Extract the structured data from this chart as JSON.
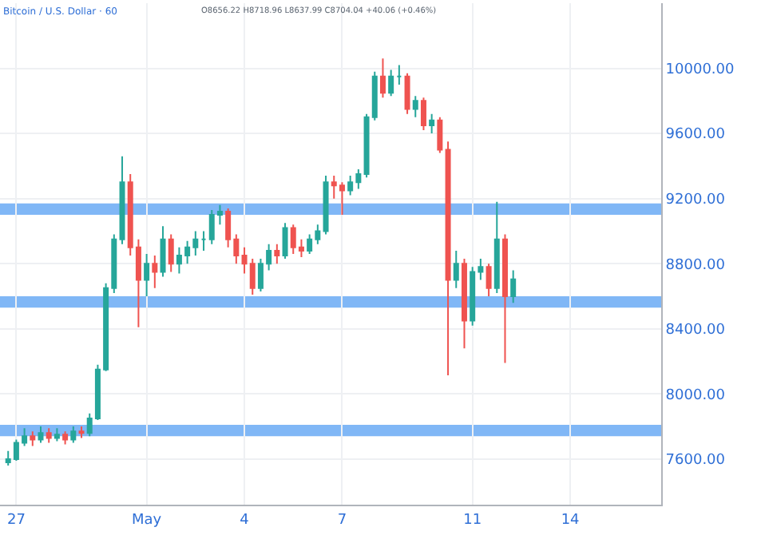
{
  "chart_data": {
    "type": "candlestick",
    "title": "Bitcoin / U.S. Dollar · 60",
    "annotations": [
      "O8656.22 H8718.96 L8637.99 C8704.04 +40.06 (+0.46%)"
    ],
    "x": [
      "--04-26T18:00",
      "--04-27T00:00",
      "--04-27T06:00",
      "--04-27T12:00",
      "--04-27T18:00",
      "--04-28T00:00",
      "--04-28T06:00",
      "--04-28T12:00",
      "--04-28T18:00",
      "--04-29T00:00",
      "--04-29T06:00",
      "--04-29T12:00",
      "--04-29T18:00",
      "--04-30T00:00",
      "--04-30T06:00",
      "--04-30T12:00",
      "--04-30T18:00",
      "--05-01T00:00",
      "--05-01T06:00",
      "--05-01T12:00",
      "--05-01T18:00",
      "--05-02T00:00",
      "--05-02T06:00",
      "--05-02T12:00",
      "--05-02T18:00",
      "--05-03T00:00",
      "--05-03T06:00",
      "--05-03T12:00",
      "--05-03T18:00",
      "--05-04T00:00",
      "--05-04T06:00",
      "--05-04T12:00",
      "--05-04T18:00",
      "--05-05T00:00",
      "--05-05T06:00",
      "--05-05T12:00",
      "--05-05T18:00",
      "--05-06T00:00",
      "--05-06T06:00",
      "--05-06T12:00",
      "--05-06T18:00",
      "--05-07T00:00",
      "--05-07T06:00",
      "--05-07T12:00",
      "--05-07T18:00",
      "--05-08T00:00",
      "--05-08T06:00",
      "--05-08T12:00",
      "--05-08T18:00",
      "--05-09T00:00",
      "--05-09T06:00",
      "--05-09T12:00",
      "--05-09T18:00",
      "--05-10T00:00",
      "--05-10T06:00",
      "--05-10T12:00",
      "--05-10T18:00",
      "--05-11T00:00",
      "--05-11T06:00",
      "--05-11T12:00",
      "--05-11T18:00",
      "--05-12T00:00",
      "--05-12T06:00"
    ],
    "ohlc": [
      [
        7580,
        7650,
        7560,
        7600
      ],
      [
        7600,
        7720,
        7590,
        7700
      ],
      [
        7700,
        7790,
        7680,
        7740
      ],
      [
        7740,
        7770,
        7680,
        7720
      ],
      [
        7720,
        7800,
        7700,
        7760
      ],
      [
        7760,
        7790,
        7700,
        7730
      ],
      [
        7730,
        7790,
        7710,
        7750
      ],
      [
        7750,
        7770,
        7690,
        7720
      ],
      [
        7720,
        7800,
        7700,
        7770
      ],
      [
        7770,
        7800,
        7730,
        7760
      ],
      [
        7760,
        7880,
        7740,
        7850
      ],
      [
        7850,
        8180,
        7840,
        8150
      ],
      [
        8150,
        8680,
        8140,
        8650
      ],
      [
        8650,
        8980,
        8620,
        8950
      ],
      [
        8950,
        9460,
        8920,
        9300
      ],
      [
        9300,
        9350,
        8850,
        8900
      ],
      [
        8900,
        8950,
        8410,
        8700
      ],
      [
        8700,
        8860,
        8600,
        8800
      ],
      [
        8800,
        8850,
        8650,
        8750
      ],
      [
        8750,
        9030,
        8720,
        8950
      ],
      [
        8950,
        8980,
        8750,
        8800
      ],
      [
        8800,
        8900,
        8740,
        8850
      ],
      [
        8850,
        8940,
        8800,
        8900
      ],
      [
        8900,
        9000,
        8850,
        8950
      ],
      [
        8950,
        9000,
        8880,
        8950
      ],
      [
        8950,
        9130,
        8920,
        9100
      ],
      [
        9100,
        9160,
        9040,
        9120
      ],
      [
        9120,
        9140,
        8900,
        8950
      ],
      [
        8950,
        8980,
        8800,
        8850
      ],
      [
        8850,
        8900,
        8740,
        8800
      ],
      [
        8800,
        8830,
        8610,
        8650
      ],
      [
        8650,
        8830,
        8630,
        8800
      ],
      [
        8800,
        8920,
        8760,
        8880
      ],
      [
        8880,
        8920,
        8800,
        8850
      ],
      [
        8850,
        9050,
        8830,
        9020
      ],
      [
        9020,
        9040,
        8860,
        8900
      ],
      [
        8900,
        8950,
        8840,
        8880
      ],
      [
        8880,
        8980,
        8860,
        8950
      ],
      [
        8950,
        9040,
        8920,
        9000
      ],
      [
        9000,
        9340,
        8980,
        9300
      ],
      [
        9300,
        9340,
        9200,
        9280
      ],
      [
        9280,
        9300,
        9100,
        9250
      ],
      [
        9250,
        9340,
        9220,
        9300
      ],
      [
        9300,
        9380,
        9260,
        9350
      ],
      [
        9350,
        9720,
        9330,
        9700
      ],
      [
        9700,
        9980,
        9680,
        9950
      ],
      [
        9950,
        10060,
        9820,
        9850
      ],
      [
        9850,
        9990,
        9830,
        9950
      ],
      [
        9950,
        10020,
        9900,
        9950
      ],
      [
        9950,
        9970,
        9720,
        9750
      ],
      [
        9750,
        9830,
        9700,
        9800
      ],
      [
        9800,
        9820,
        9620,
        9650
      ],
      [
        9650,
        9720,
        9600,
        9680
      ],
      [
        9680,
        9700,
        9480,
        9500
      ],
      [
        9500,
        9550,
        8115,
        8700
      ],
      [
        8700,
        8880,
        8650,
        8800
      ],
      [
        8800,
        8830,
        8280,
        8450
      ],
      [
        8450,
        8780,
        8420,
        8750
      ],
      [
        8750,
        8830,
        8700,
        8780
      ],
      [
        8780,
        8800,
        8600,
        8650
      ],
      [
        8650,
        9180,
        8620,
        8950
      ],
      [
        8950,
        8980,
        8190,
        8600
      ],
      [
        8600,
        8760,
        8560,
        8704
      ]
    ],
    "xlim": [
      "--04-26T12:00",
      "--05-16T19:00"
    ],
    "xticks": [
      {
        "value": "--04-27",
        "label": "27"
      },
      {
        "value": "--05-01",
        "label": "May"
      },
      {
        "value": "--05-04",
        "label": "4"
      },
      {
        "value": "--05-07",
        "label": "7"
      },
      {
        "value": "--05-11",
        "label": "11"
      },
      {
        "value": "--05-14",
        "label": "14"
      }
    ],
    "ylim": [
      7320,
      10400
    ],
    "yticks": [
      {
        "value": 7600,
        "label": "7600.00"
      },
      {
        "value": 8000,
        "label": "8000.00"
      },
      {
        "value": 8400,
        "label": "8400.00"
      },
      {
        "value": 8800,
        "label": "8800.00"
      },
      {
        "value": 9200,
        "label": "9200.00"
      },
      {
        "value": 9600,
        "label": "9600.00"
      },
      {
        "value": 10000,
        "label": "10000.00"
      }
    ],
    "bands": [
      {
        "axis": "y",
        "from": 9100,
        "to": 9170,
        "color": "#6aaaf5"
      },
      {
        "axis": "y",
        "from": 8530,
        "to": 8600,
        "color": "#6aaaf5"
      },
      {
        "axis": "y",
        "from": 7740,
        "to": 7810,
        "color": "#6aaaf5"
      }
    ],
    "grid": true
  }
}
